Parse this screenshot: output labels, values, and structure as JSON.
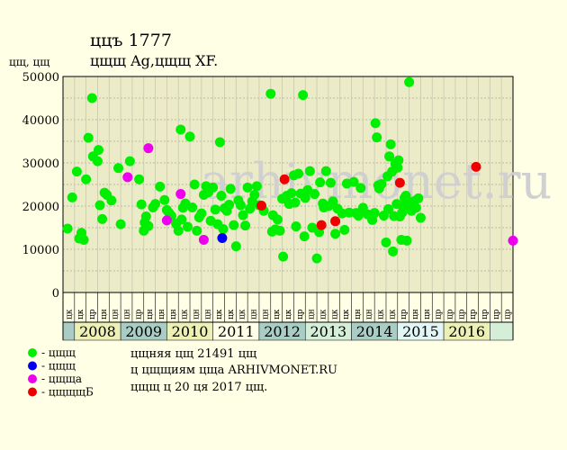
{
  "header": {
    "line1": "ццъ 1777",
    "line2": "цщщ Ag,цщщ XF."
  },
  "watermark": "arhivmonet.ru",
  "info": {
    "line1": "цщняя цщ 21491 цщ",
    "line2": "ц цщщиям цща ARHIVMONET.RU",
    "line3": "цщщ ц 20 ця 2017 цщ."
  },
  "legend": [
    {
      "label": "- цщщ",
      "color": "#00ee00"
    },
    {
      "label": "- цщщ",
      "color": "#0000ee"
    },
    {
      "label": "- цщща",
      "color": "#ee00ee"
    },
    {
      "label": "- цщщщБ",
      "color": "#ee0000"
    }
  ],
  "chart_data": {
    "type": "scatter",
    "title": "ццъ 1777",
    "subtitle": "цщщ Ag,цщщ XF.",
    "ylabel": "цщ, цщ",
    "ylim": [
      0,
      50000
    ],
    "yticks": [
      0,
      10000,
      20000,
      30000,
      40000,
      50000
    ],
    "xlim": [
      2007.25,
      2017.0
    ],
    "years": [
      {
        "label": "2008",
        "from": 2007.5,
        "to": 2008.5,
        "color": "#ecf0b4"
      },
      {
        "label": "2009",
        "from": 2008.5,
        "to": 2009.5,
        "color": "#a9cdc4"
      },
      {
        "label": "2010",
        "from": 2009.5,
        "to": 2010.5,
        "color": "#ecf0b4"
      },
      {
        "label": "2011",
        "from": 2010.5,
        "to": 2011.5,
        "color": "#ffffe8"
      },
      {
        "label": "2012",
        "from": 2011.5,
        "to": 2012.5,
        "color": "#a9cdc4"
      },
      {
        "label": "2013",
        "from": 2012.5,
        "to": 2013.5,
        "color": "#d5eed7"
      },
      {
        "label": "2014",
        "from": 2013.5,
        "to": 2014.5,
        "color": "#a9cdc4"
      },
      {
        "label": "2015",
        "from": 2014.5,
        "to": 2015.5,
        "color": "#e3f6f6"
      },
      {
        "label": "2016",
        "from": 2015.5,
        "to": 2016.5,
        "color": "#ecf0b4"
      }
    ],
    "quarter_labels": [
      "цк",
      "цк",
      "цр",
      "цн",
      "цн",
      "цн",
      "цр",
      "цн",
      "цн",
      "цн",
      "цк",
      "цн",
      "цн",
      "цк",
      "цк",
      "цк",
      "цн",
      "цн",
      "цк",
      "цк",
      "цр",
      "цн",
      "цк",
      "цк",
      "цк",
      "цн",
      "цн",
      "цк",
      "цк",
      "цр",
      "цн",
      "цн",
      "цр",
      "цр",
      "цр",
      "цр",
      "цр",
      "цр",
      "цр"
    ],
    "series": [
      {
        "name": "цщщ",
        "color": "#00ee00",
        "points": [
          [
            2007.35,
            14800
          ],
          [
            2007.45,
            22000
          ],
          [
            2007.55,
            28000
          ],
          [
            2007.6,
            12500
          ],
          [
            2007.65,
            13800
          ],
          [
            2007.7,
            12200
          ],
          [
            2007.75,
            26200
          ],
          [
            2007.8,
            35800
          ],
          [
            2007.88,
            45000
          ],
          [
            2007.9,
            31500
          ],
          [
            2008.0,
            30400
          ],
          [
            2008.02,
            33000
          ],
          [
            2008.05,
            20200
          ],
          [
            2008.1,
            17000
          ],
          [
            2008.15,
            23100
          ],
          [
            2008.2,
            22600
          ],
          [
            2008.3,
            21300
          ],
          [
            2008.45,
            28800
          ],
          [
            2008.5,
            15800
          ],
          [
            2008.7,
            30400
          ],
          [
            2008.9,
            26200
          ],
          [
            2008.95,
            20400
          ],
          [
            2009.0,
            14300
          ],
          [
            2009.02,
            16200
          ],
          [
            2009.05,
            17600
          ],
          [
            2009.1,
            15400
          ],
          [
            2009.2,
            19700
          ],
          [
            2009.25,
            20500
          ],
          [
            2009.35,
            24500
          ],
          [
            2009.45,
            21400
          ],
          [
            2009.5,
            19100
          ],
          [
            2009.55,
            18400
          ],
          [
            2009.6,
            17700
          ],
          [
            2009.7,
            15900
          ],
          [
            2009.75,
            14300
          ],
          [
            2009.8,
            37700
          ],
          [
            2009.82,
            16900
          ],
          [
            2009.85,
            19600
          ],
          [
            2009.9,
            20600
          ],
          [
            2009.95,
            15200
          ],
          [
            2010.0,
            36100
          ],
          [
            2010.05,
            19700
          ],
          [
            2010.1,
            25000
          ],
          [
            2010.15,
            14300
          ],
          [
            2010.2,
            17400
          ],
          [
            2010.25,
            18300
          ],
          [
            2010.3,
            22600
          ],
          [
            2010.35,
            24600
          ],
          [
            2010.4,
            23200
          ],
          [
            2010.45,
            16600
          ],
          [
            2010.5,
            24300
          ],
          [
            2010.55,
            19200
          ],
          [
            2010.6,
            15800
          ],
          [
            2010.65,
            34800
          ],
          [
            2010.68,
            22400
          ],
          [
            2010.72,
            14700
          ],
          [
            2010.75,
            19500
          ],
          [
            2010.8,
            18900
          ],
          [
            2010.85,
            20300
          ],
          [
            2010.88,
            24000
          ],
          [
            2010.95,
            15600
          ],
          [
            2011.0,
            10700
          ],
          [
            2011.05,
            21300
          ],
          [
            2011.1,
            20200
          ],
          [
            2011.15,
            17900
          ],
          [
            2011.2,
            15500
          ],
          [
            2011.25,
            24300
          ],
          [
            2011.3,
            19400
          ],
          [
            2011.35,
            21100
          ],
          [
            2011.4,
            22600
          ],
          [
            2011.45,
            24600
          ],
          [
            2011.5,
            20200
          ],
          [
            2011.6,
            18900
          ],
          [
            2011.75,
            46000
          ],
          [
            2011.78,
            14100
          ],
          [
            2011.8,
            17900
          ],
          [
            2011.85,
            14600
          ],
          [
            2011.9,
            16900
          ],
          [
            2011.95,
            14300
          ],
          [
            2012.0,
            21700
          ],
          [
            2012.02,
            8300
          ],
          [
            2012.1,
            22400
          ],
          [
            2012.15,
            20500
          ],
          [
            2012.2,
            23000
          ],
          [
            2012.25,
            27100
          ],
          [
            2012.28,
            20800
          ],
          [
            2012.3,
            15300
          ],
          [
            2012.35,
            27500
          ],
          [
            2012.4,
            22900
          ],
          [
            2012.45,
            45700
          ],
          [
            2012.48,
            13000
          ],
          [
            2012.5,
            21900
          ],
          [
            2012.55,
            23700
          ],
          [
            2012.6,
            28100
          ],
          [
            2012.65,
            15000
          ],
          [
            2012.7,
            22800
          ],
          [
            2012.75,
            7900
          ],
          [
            2012.8,
            14000
          ],
          [
            2012.82,
            25500
          ],
          [
            2012.88,
            20600
          ],
          [
            2012.9,
            19700
          ],
          [
            2012.95,
            28100
          ],
          [
            2013.0,
            20000
          ],
          [
            2013.05,
            25400
          ],
          [
            2013.1,
            21100
          ],
          [
            2013.15,
            13600
          ],
          [
            2013.2,
            19400
          ],
          [
            2013.3,
            18300
          ],
          [
            2013.35,
            14500
          ],
          [
            2013.4,
            25200
          ],
          [
            2013.45,
            18500
          ],
          [
            2013.55,
            25600
          ],
          [
            2013.6,
            18400
          ],
          [
            2013.65,
            17800
          ],
          [
            2013.7,
            24200
          ],
          [
            2013.75,
            19600
          ],
          [
            2013.85,
            18100
          ],
          [
            2013.95,
            16800
          ],
          [
            2014.0,
            18400
          ],
          [
            2014.02,
            39200
          ],
          [
            2014.05,
            35900
          ],
          [
            2014.08,
            24800
          ],
          [
            2014.1,
            24100
          ],
          [
            2014.15,
            25100
          ],
          [
            2014.2,
            17800
          ],
          [
            2014.25,
            11600
          ],
          [
            2014.28,
            26900
          ],
          [
            2014.3,
            19300
          ],
          [
            2014.32,
            31500
          ],
          [
            2014.35,
            34300
          ],
          [
            2014.38,
            28000
          ],
          [
            2014.4,
            9500
          ],
          [
            2014.42,
            17700
          ],
          [
            2014.45,
            29800
          ],
          [
            2014.48,
            20500
          ],
          [
            2014.5,
            28900
          ],
          [
            2014.52,
            30600
          ],
          [
            2014.55,
            17600
          ],
          [
            2014.58,
            12200
          ],
          [
            2014.6,
            18500
          ],
          [
            2014.62,
            19900
          ],
          [
            2014.65,
            21900
          ],
          [
            2014.68,
            22400
          ],
          [
            2014.7,
            12000
          ],
          [
            2014.72,
            20300
          ],
          [
            2014.75,
            48700
          ],
          [
            2014.8,
            18900
          ],
          [
            2014.85,
            21100
          ],
          [
            2014.9,
            19600
          ],
          [
            2014.95,
            21800
          ],
          [
            2015.0,
            17300
          ]
        ]
      },
      {
        "name": "цщщ",
        "color": "#0000ee",
        "points": [
          [
            2010.7,
            12600
          ]
        ]
      },
      {
        "name": "цщща",
        "color": "#ee00ee",
        "points": [
          [
            2009.1,
            33400
          ],
          [
            2008.65,
            26700
          ],
          [
            2009.8,
            22800
          ],
          [
            2009.5,
            16700
          ],
          [
            2010.3,
            12200
          ],
          [
            2017.0,
            12000
          ]
        ]
      },
      {
        "name": "цщщщБ",
        "color": "#ee0000",
        "points": [
          [
            2011.55,
            20100
          ],
          [
            2012.05,
            26200
          ],
          [
            2012.85,
            15600
          ],
          [
            2013.15,
            16500
          ],
          [
            2014.55,
            25400
          ],
          [
            2016.2,
            29100
          ]
        ]
      }
    ]
  }
}
